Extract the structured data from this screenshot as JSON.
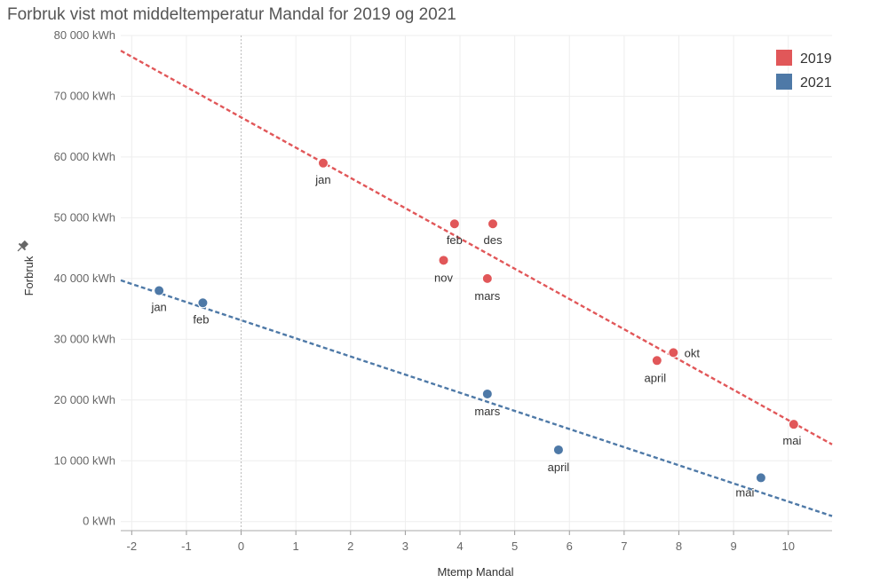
{
  "chart_data": {
    "type": "scatter",
    "title": "Forbruk vist mot middeltemperatur Mandal for 2019 og 2021",
    "xlabel": "Mtemp Mandal",
    "ylabel": "Forbruk",
    "xlim": [
      -2.2,
      10.8
    ],
    "ylim": [
      -1500,
      80000
    ],
    "x_ticks": [
      -2,
      -1,
      0,
      1,
      2,
      3,
      4,
      5,
      6,
      7,
      8,
      9,
      10
    ],
    "y_ticks": [
      0,
      10000,
      20000,
      30000,
      40000,
      50000,
      60000,
      70000,
      80000
    ],
    "y_tick_labels": [
      "0 kWh",
      "10 000 kWh",
      "20 000 kWh",
      "30 000 kWh",
      "40 000 kWh",
      "50 000 kWh",
      "60 000 kWh",
      "70 000 kWh",
      "80 000 kWh"
    ],
    "grid": true,
    "legend_position": "top-right",
    "series": [
      {
        "name": "2019",
        "color": "#e15759",
        "points": [
          {
            "label": "jan",
            "x": 1.5,
            "y": 59000
          },
          {
            "label": "feb",
            "x": 3.9,
            "y": 49000
          },
          {
            "label": "des",
            "x": 4.6,
            "y": 49000
          },
          {
            "label": "nov",
            "x": 3.7,
            "y": 43000
          },
          {
            "label": "mars",
            "x": 4.5,
            "y": 40000
          },
          {
            "label": "april",
            "x": 7.6,
            "y": 26500
          },
          {
            "label": "okt",
            "x": 7.9,
            "y": 27800
          },
          {
            "label": "mai",
            "x": 10.1,
            "y": 16000
          }
        ],
        "trend": {
          "x0": -2.2,
          "y0": 77500,
          "x1": 10.8,
          "y1": 12700
        }
      },
      {
        "name": "2021",
        "color": "#4e79a7",
        "points": [
          {
            "label": "jan",
            "x": -1.5,
            "y": 38000
          },
          {
            "label": "feb",
            "x": -0.7,
            "y": 36000
          },
          {
            "label": "mars",
            "x": 4.5,
            "y": 21000
          },
          {
            "label": "april",
            "x": 5.8,
            "y": 11800
          },
          {
            "label": "mai",
            "x": 9.5,
            "y": 7200
          }
        ],
        "trend": {
          "x0": -2.2,
          "y0": 39700,
          "x1": 10.8,
          "y1": 900
        }
      }
    ]
  }
}
